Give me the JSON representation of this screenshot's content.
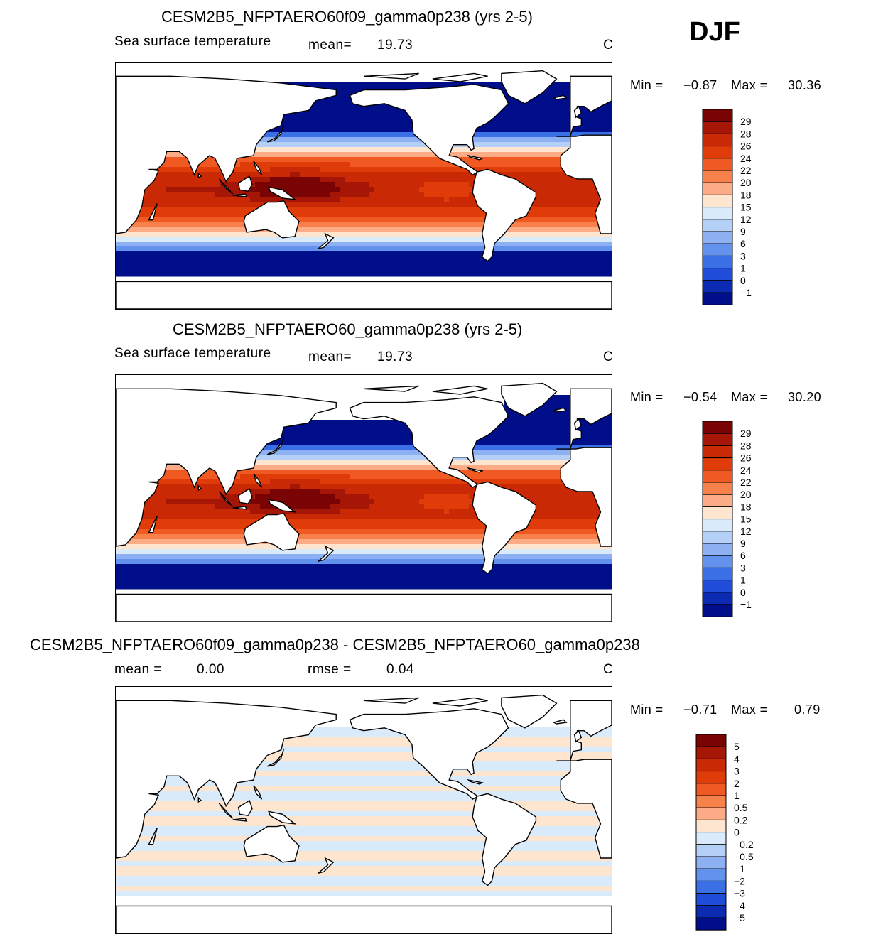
{
  "season": "DJF",
  "panels": [
    {
      "id": "top",
      "title": "CESM2B5_NFPTAERO60f09_gamma0p238 (yrs 2-5)",
      "variable": "Sea surface temperature",
      "stat1_label": "mean=",
      "stat1_value": "19.73",
      "units": "C",
      "min_label": "Min =",
      "min_value": "−0.87",
      "max_label": "Max =",
      "max_value": "30.36",
      "scale": "sst",
      "colorbar_labels": [
        "29",
        "28",
        "26",
        "24",
        "22",
        "20",
        "18",
        "15",
        "12",
        "9",
        "6",
        "3",
        "1",
        "0",
        "−1"
      ]
    },
    {
      "id": "middle",
      "title": "CESM2B5_NFPTAERO60_gamma0p238 (yrs 2-5)",
      "variable": "Sea surface temperature",
      "stat1_label": "mean=",
      "stat1_value": "19.73",
      "units": "C",
      "min_label": "Min =",
      "min_value": "−0.54",
      "max_label": "Max =",
      "max_value": "30.20",
      "scale": "sst",
      "colorbar_labels": [
        "29",
        "28",
        "26",
        "24",
        "22",
        "20",
        "18",
        "15",
        "12",
        "9",
        "6",
        "3",
        "1",
        "0",
        "−1"
      ]
    },
    {
      "id": "bottom",
      "title": "CESM2B5_NFPTAERO60f09_gamma0p238 - CESM2B5_NFPTAERO60_gamma0p238",
      "stat1_label": "mean =",
      "stat1_value": "0.00",
      "stat2_label": "rmse =",
      "stat2_value": "0.04",
      "units": "C",
      "min_label": "Min =",
      "min_value": "−0.71",
      "max_label": "Max =",
      "max_value": "0.79",
      "scale": "diff",
      "colorbar_labels": [
        "5",
        "4",
        "3",
        "2",
        "1",
        "0.5",
        "0.2",
        "0",
        "−0.2",
        "−0.5",
        "−1",
        "−2",
        "−3",
        "−4",
        "−5"
      ]
    }
  ],
  "colors": {
    "sst": [
      "#7a0403",
      "#a51606",
      "#c92a05",
      "#e03c0a",
      "#f05a22",
      "#f7814a",
      "#fbac86",
      "#fde5d0",
      "#d9ebfb",
      "#b4d0f7",
      "#8cb0f2",
      "#6392ee",
      "#3b6fe6",
      "#1f4cd9",
      "#0b2bb3",
      "#000e8a"
    ],
    "diff": [
      "#7a0403",
      "#a51606",
      "#c92a05",
      "#e03c0a",
      "#f05a22",
      "#f7814a",
      "#fbac86",
      "#fde5d0",
      "#d9ebfb",
      "#b4d0f7",
      "#8cb0f2",
      "#6392ee",
      "#3b6fe6",
      "#1f4cd9",
      "#0b2bb3",
      "#000e8a"
    ]
  }
}
